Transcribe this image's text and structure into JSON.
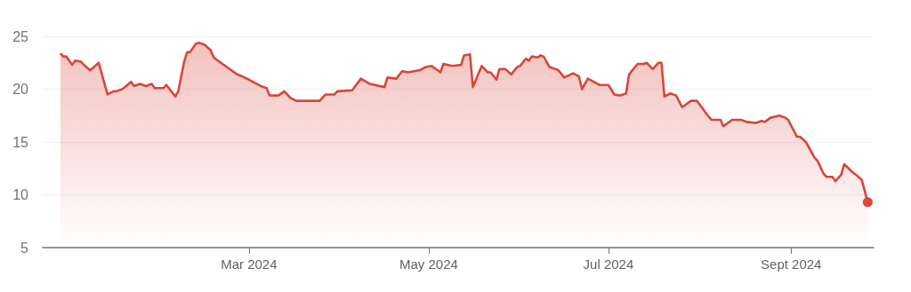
{
  "chart_data": {
    "type": "area",
    "x": [
      "2023-12-28",
      "2023-12-29",
      "2023-12-30",
      "2024-01-01",
      "2024-01-02",
      "2024-01-04",
      "2024-01-05",
      "2024-01-07",
      "2024-01-08",
      "2024-01-10",
      "2024-01-13",
      "2024-01-15",
      "2024-01-16",
      "2024-01-18",
      "2024-01-21",
      "2024-01-22",
      "2024-01-24",
      "2024-01-26",
      "2024-01-28",
      "2024-01-29",
      "2024-02-01",
      "2024-02-02",
      "2024-02-05",
      "2024-02-06",
      "2024-02-08",
      "2024-02-09",
      "2024-02-10",
      "2024-02-12",
      "2024-02-13",
      "2024-02-15",
      "2024-02-17",
      "2024-02-18",
      "2024-02-20",
      "2024-02-21",
      "2024-02-23",
      "2024-02-26",
      "2024-02-27",
      "2024-03-01",
      "2024-03-03",
      "2024-03-05",
      "2024-03-07",
      "2024-03-08",
      "2024-03-11",
      "2024-03-13",
      "2024-03-15",
      "2024-03-17",
      "2024-03-19",
      "2024-03-22",
      "2024-03-25",
      "2024-03-27",
      "2024-03-30",
      "2024-03-31",
      "2024-04-05",
      "2024-04-08",
      "2024-04-11",
      "2024-04-16",
      "2024-04-17",
      "2024-04-20",
      "2024-04-22",
      "2024-04-24",
      "2024-04-28",
      "2024-04-30",
      "2024-05-02",
      "2024-05-05",
      "2024-05-06",
      "2024-05-09",
      "2024-05-12",
      "2024-05-13",
      "2024-05-15",
      "2024-05-16",
      "2024-05-19",
      "2024-05-21",
      "2024-05-22",
      "2024-05-24",
      "2024-05-25",
      "2024-05-27",
      "2024-05-29",
      "2024-05-31",
      "2024-06-01",
      "2024-06-03",
      "2024-06-04",
      "2024-06-05",
      "2024-06-07",
      "2024-06-08",
      "2024-06-09",
      "2024-06-11",
      "2024-06-14",
      "2024-06-16",
      "2024-06-19",
      "2024-06-21",
      "2024-06-22",
      "2024-06-24",
      "2024-06-26",
      "2024-06-28",
      "2024-06-30",
      "2024-07-01",
      "2024-07-03",
      "2024-07-05",
      "2024-07-07",
      "2024-07-08",
      "2024-07-10",
      "2024-07-11",
      "2024-07-13",
      "2024-07-14",
      "2024-07-16",
      "2024-07-18",
      "2024-07-19",
      "2024-07-20",
      "2024-07-22",
      "2024-07-24",
      "2024-07-26",
      "2024-07-29",
      "2024-07-31",
      "2024-08-04",
      "2024-08-05",
      "2024-08-08",
      "2024-08-09",
      "2024-08-12",
      "2024-08-15",
      "2024-08-17",
      "2024-08-20",
      "2024-08-22",
      "2024-08-23",
      "2024-08-25",
      "2024-08-28",
      "2024-08-30",
      "2024-08-31",
      "2024-09-03",
      "2024-09-04",
      "2024-09-06",
      "2024-09-09",
      "2024-09-10",
      "2024-09-12",
      "2024-09-13",
      "2024-09-15",
      "2024-09-16",
      "2024-09-18",
      "2024-09-19",
      "2024-09-22",
      "2024-09-23",
      "2024-09-25",
      "2024-09-27"
    ],
    "series": [
      {
        "color": "#d9463b",
        "values": [
          23.4,
          23.1,
          23.1,
          22.3,
          22.7,
          22.6,
          22.3,
          21.8,
          22.0,
          22.5,
          19.5,
          19.8,
          19.8,
          20.0,
          20.7,
          20.3,
          20.5,
          20.3,
          20.5,
          20.1,
          20.1,
          20.4,
          19.3,
          19.8,
          22.6,
          23.5,
          23.5,
          24.3,
          24.4,
          24.2,
          23.7,
          23.0,
          22.6,
          22.4,
          22.0,
          21.4,
          21.3,
          20.9,
          20.6,
          20.3,
          20.1,
          19.4,
          19.4,
          19.8,
          19.2,
          18.9,
          18.9,
          18.9,
          18.9,
          19.5,
          19.5,
          19.8,
          19.9,
          21.0,
          20.5,
          20.2,
          21.1,
          21.0,
          21.7,
          21.6,
          21.8,
          22.1,
          22.2,
          21.6,
          22.4,
          22.2,
          22.3,
          23.2,
          23.3,
          20.2,
          22.2,
          21.6,
          21.6,
          20.9,
          21.9,
          21.9,
          21.4,
          22.1,
          22.2,
          22.9,
          22.7,
          23.1,
          23.0,
          23.2,
          23.1,
          22.1,
          21.8,
          21.1,
          21.5,
          21.2,
          20.0,
          21.0,
          20.7,
          20.4,
          20.4,
          20.4,
          19.5,
          19.4,
          19.6,
          21.4,
          22.1,
          22.4,
          22.4,
          22.5,
          21.9,
          22.5,
          22.5,
          19.3,
          19.6,
          19.4,
          18.3,
          18.9,
          18.9,
          17.4,
          17.1,
          17.1,
          16.5,
          17.1,
          17.1,
          16.9,
          16.8,
          17.0,
          16.9,
          17.3,
          17.5,
          17.3,
          17.1,
          15.5,
          15.5,
          15.0,
          13.5,
          13.2,
          12.0,
          11.7,
          11.7,
          11.3,
          11.9,
          12.9,
          12.1,
          11.9,
          11.4,
          9.3
        ]
      }
    ],
    "xlim": [
      "2023-12-22",
      "2024-09-29"
    ],
    "xticks": [
      {
        "value": "2024-03-01",
        "label": "Mar 2024"
      },
      {
        "value": "2024-05-01",
        "label": "May 2024"
      },
      {
        "value": "2024-07-01",
        "label": "Jul 2024"
      },
      {
        "value": "2024-09-01",
        "label": "Sept 2024"
      }
    ],
    "ylim": [
      5,
      25
    ],
    "yticks": [
      5,
      10,
      15,
      20,
      25
    ],
    "grid": "y"
  }
}
